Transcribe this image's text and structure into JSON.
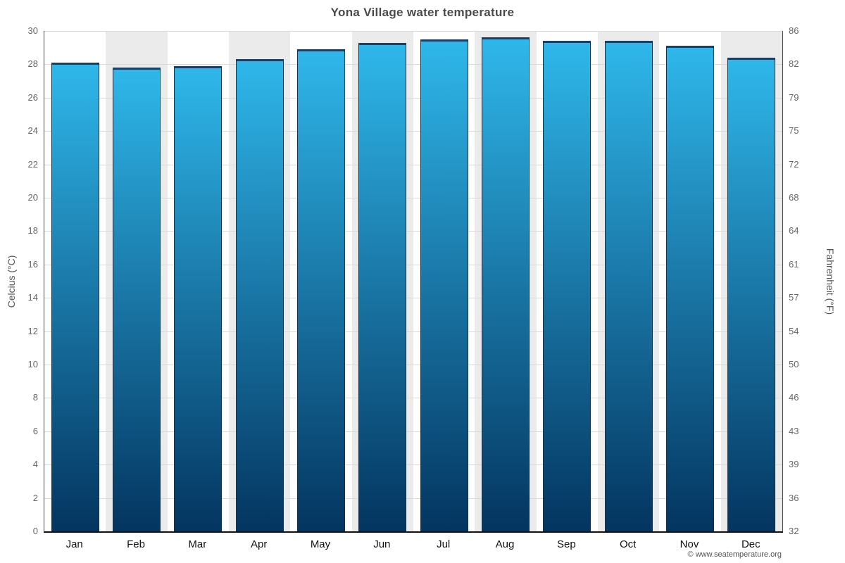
{
  "chart_data": {
    "type": "bar",
    "title": "Yona Village water temperature",
    "ylabel_left": "Celcius (°C)",
    "ylabel_right": "Fahrenheit (°F)",
    "categories": [
      "Jan",
      "Feb",
      "Mar",
      "Apr",
      "May",
      "Jun",
      "Jul",
      "Aug",
      "Sep",
      "Oct",
      "Nov",
      "Dec"
    ],
    "values": [
      28.1,
      27.8,
      27.9,
      28.3,
      28.9,
      29.3,
      29.5,
      29.6,
      29.4,
      29.4,
      29.1,
      28.4
    ],
    "ylim": [
      0,
      30
    ],
    "celsius_ticks": [
      0,
      2,
      4,
      6,
      8,
      10,
      12,
      14,
      16,
      18,
      20,
      22,
      24,
      26,
      28,
      30
    ],
    "fahrenheit_ticks": [
      "32",
      "36",
      "39",
      "43",
      "46",
      "50",
      "54",
      "57",
      "61",
      "64",
      "68",
      "72",
      "75",
      "79",
      "82",
      "86"
    ],
    "grid": true,
    "legend": "none",
    "bar_gradient_top": "#2fb7ea",
    "bar_gradient_bottom": "#043560",
    "band_color": "#ffffff",
    "band_color_alt": "#ebebeb"
  },
  "footer": {
    "copyright": "© www.seatemperature.org"
  }
}
